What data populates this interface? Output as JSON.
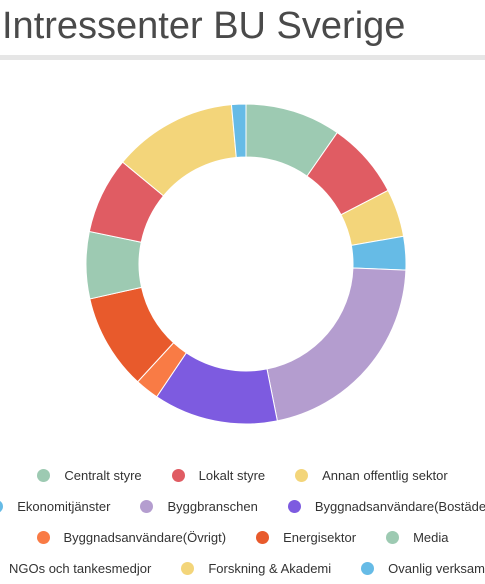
{
  "header": {
    "title": "Intressenter BU Sverige"
  },
  "chart_data": {
    "type": "pie",
    "style": "donut",
    "title": "Intressenter BU Sverige",
    "legend_position": "bottom",
    "series": [
      {
        "name": "Centralt styre",
        "value": 10,
        "color": "#9dcab2"
      },
      {
        "name": "Lokalt styre",
        "value": 8,
        "color": "#e05c63"
      },
      {
        "name": "Annan offentlig sektor",
        "value": 5,
        "color": "#f3d57a"
      },
      {
        "name": "Ekonomitjänster",
        "value": 3.5,
        "color": "#66bbe6"
      },
      {
        "name": "Byggbranschen",
        "value": 22,
        "color": "#b49dcf"
      },
      {
        "name": "Byggnadsanvändare(Bostäder)",
        "value": 13,
        "color": "#7d5be0"
      },
      {
        "name": "Byggnadsanvändare(Övrigt)",
        "value": 2.5,
        "color": "#f97b45"
      },
      {
        "name": "Energisektor",
        "value": 10,
        "color": "#e85a2c"
      },
      {
        "name": "Media",
        "value": 7,
        "color": "#9dcab2"
      },
      {
        "name": "NGOs och tankesmedjor",
        "value": 8,
        "color": "#e05c63"
      },
      {
        "name": "Forskning & Akademi",
        "value": 13,
        "color": "#f3d57a"
      },
      {
        "name": "Ovanlig verksamhet",
        "value": 1.5,
        "color": "#66bbe6"
      }
    ]
  }
}
